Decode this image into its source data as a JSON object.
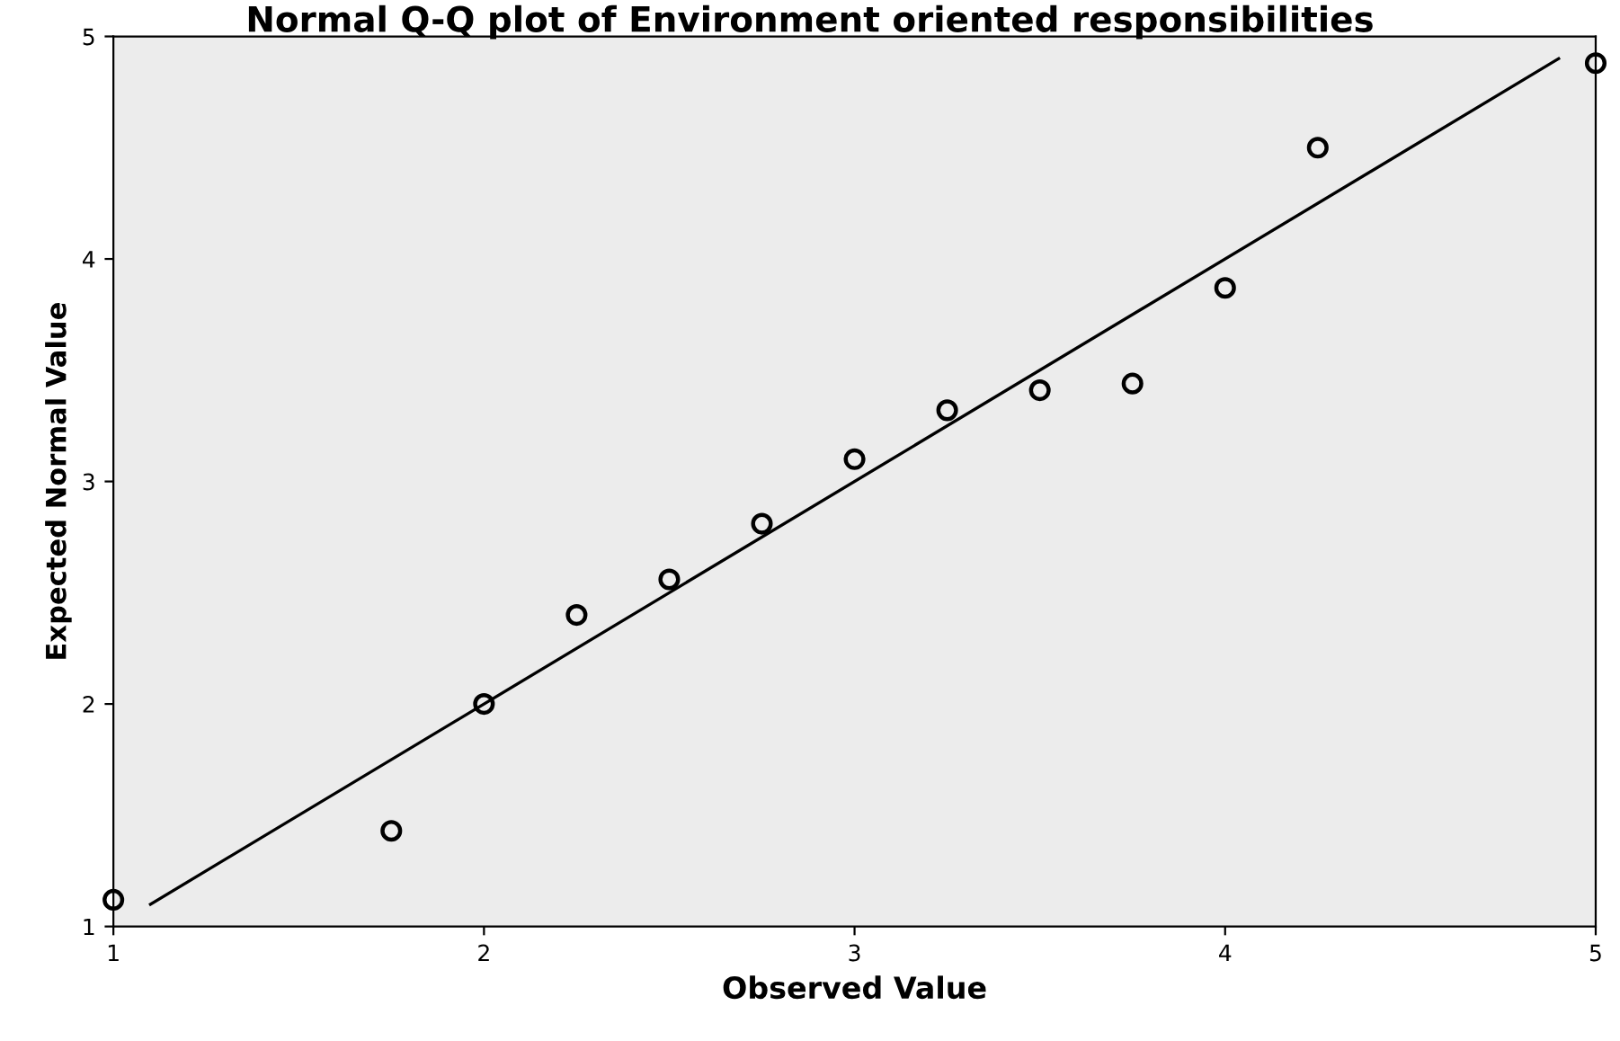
{
  "chart_data": {
    "type": "scatter",
    "title": "Normal Q-Q plot of Environment oriented responsibilities",
    "xlabel": "Observed Value",
    "ylabel": "Expected Normal Value",
    "xlim": [
      1,
      5
    ],
    "ylim": [
      1,
      5
    ],
    "xticks": [
      1,
      2,
      3,
      4,
      5
    ],
    "yticks": [
      1,
      2,
      3,
      4,
      5
    ],
    "grid": false,
    "legend": false,
    "series": [
      {
        "marker": "circle",
        "color": "#000000",
        "x": [
          1,
          1.75,
          2,
          2.25,
          2.5,
          2.75,
          3,
          3.25,
          3.5,
          3.75,
          4,
          4.25,
          5
        ],
        "values": [
          1.12,
          1.43,
          2.0,
          2.4,
          2.56,
          2.81,
          3.1,
          3.32,
          3.41,
          3.44,
          3.87,
          4.5,
          4.88
        ]
      },
      {
        "type": "line",
        "marker": "none",
        "color": "#000000",
        "x": [
          1.1,
          4.9
        ],
        "values": [
          1.1,
          4.9
        ]
      }
    ]
  }
}
